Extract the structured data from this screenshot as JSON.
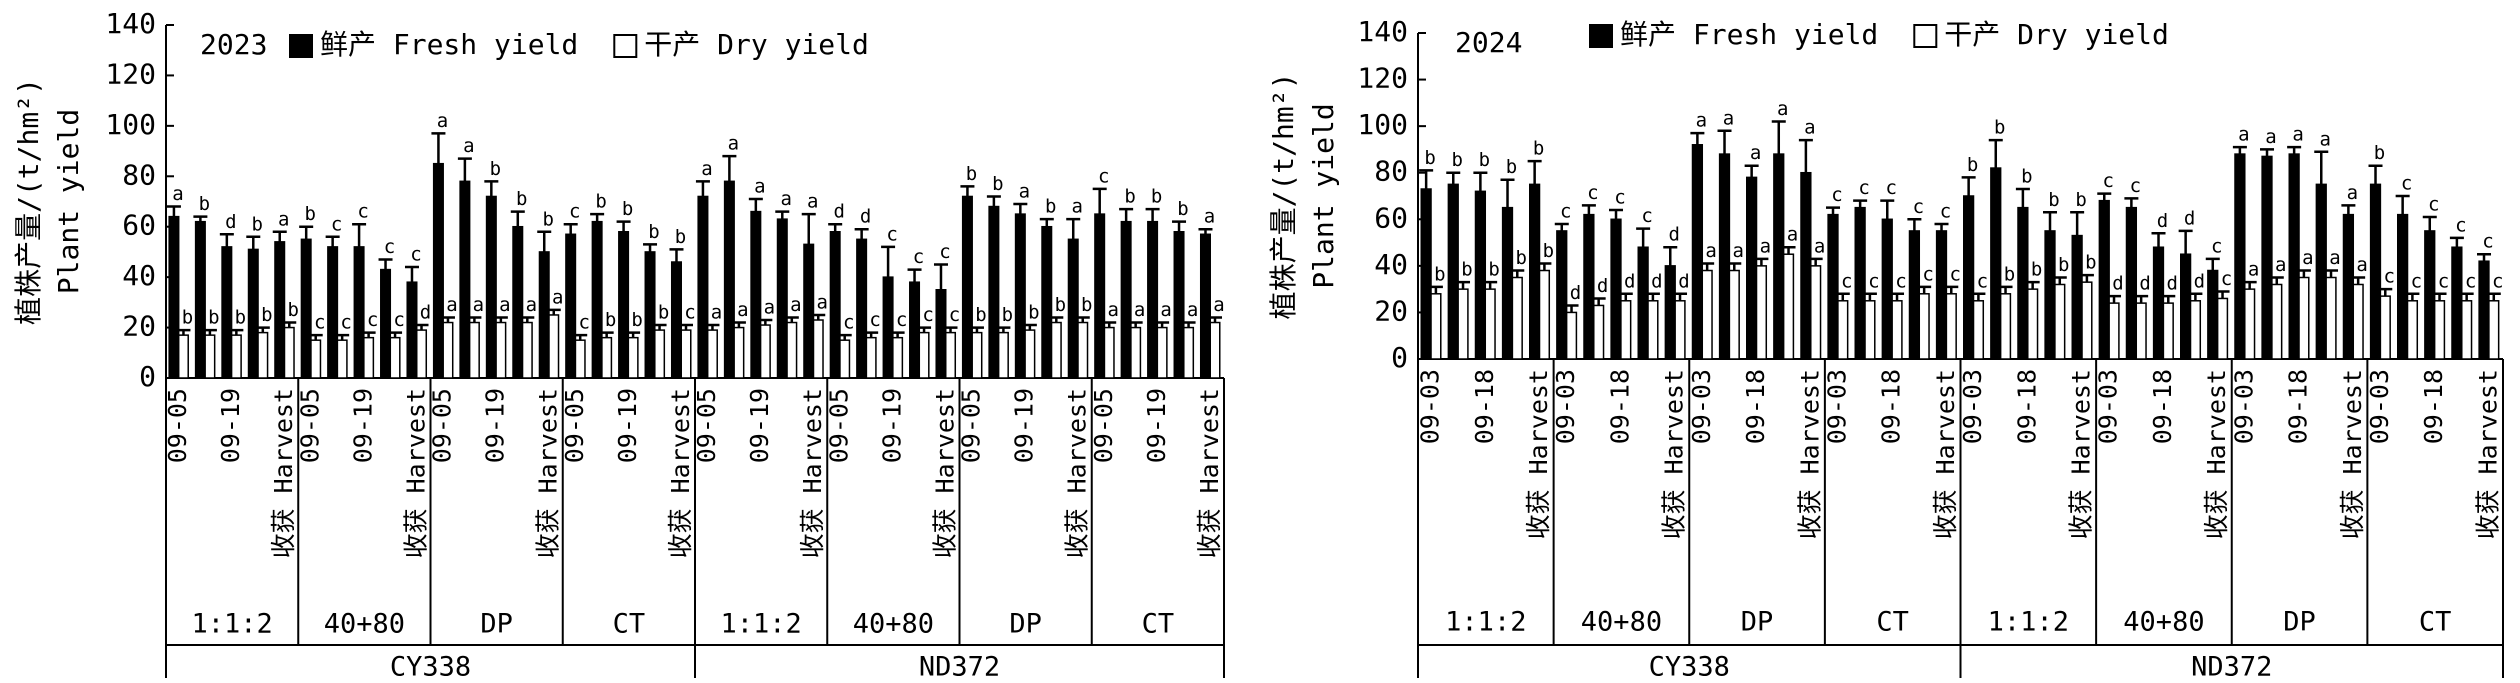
{
  "chart_data": [
    {
      "type": "bar",
      "title": "2023",
      "ylabel": "植株产量/(t/hm²)",
      "ylabel_en": "Plant yield",
      "ylim": [
        0,
        140
      ],
      "yticks": [
        0,
        20,
        40,
        60,
        80,
        100,
        120,
        140
      ],
      "legend": "top",
      "categories": [
        "09-05",
        null,
        "09-19",
        null,
        "收获 Harvest",
        "09-05",
        null,
        "09-19",
        null,
        "收获 Harvest",
        "09-05",
        null,
        "09-19",
        null,
        "收获 Harvest",
        "09-05",
        null,
        "09-19",
        null,
        "收获 Harvest",
        "09-05",
        null,
        "09-19",
        null,
        "收获 Harvest",
        "09-05",
        null,
        "09-19",
        null,
        "收获 Harvest",
        "09-05",
        null,
        "09-19",
        null,
        "收获 Harvest",
        "09-05",
        null,
        "09-19",
        null,
        "收获 Harvest"
      ],
      "treatments": [
        "1:1:2",
        "40+80",
        "DP",
        "CT",
        "1:1:2",
        "40+80",
        "DP",
        "CT"
      ],
      "varieties": [
        "CY338",
        "ND372"
      ],
      "series": [
        {
          "name": "鲜产 Fresh yield",
          "color": "#000000",
          "values": [
            64,
            62,
            52,
            51,
            54,
            55,
            52,
            52,
            43,
            38,
            85,
            78,
            72,
            60,
            50,
            57,
            62,
            58,
            50,
            46,
            72,
            78,
            66,
            63,
            53,
            58,
            55,
            40,
            38,
            35,
            72,
            68,
            65,
            60,
            55,
            65,
            62,
            62,
            58,
            57
          ],
          "errors": [
            4,
            2,
            5,
            5,
            4,
            5,
            4,
            9,
            4,
            6,
            12,
            9,
            6,
            6,
            8,
            4,
            3,
            4,
            3,
            5,
            6,
            10,
            5,
            3,
            12,
            3,
            4,
            12,
            5,
            10,
            4,
            4,
            4,
            3,
            8,
            10,
            5,
            5,
            4,
            2
          ],
          "letters": [
            "a",
            "b",
            "d",
            "b",
            "a",
            "b",
            "c",
            "c",
            "c",
            "c",
            "a",
            "a",
            "b",
            "b",
            "b",
            "c",
            "b",
            "b",
            "b",
            "b",
            "a",
            "a",
            "a",
            "a",
            "a",
            "d",
            "d",
            "c",
            "c",
            "c",
            "b",
            "b",
            "a",
            "b",
            "a",
            "c",
            "b",
            "b",
            "b",
            "a"
          ]
        },
        {
          "name": "干产 Dry yield",
          "color": "#ffffff",
          "values": [
            17,
            17,
            17,
            18,
            20,
            15,
            15,
            16,
            16,
            19,
            22,
            22,
            22,
            22,
            25,
            15,
            16,
            16,
            19,
            19,
            19,
            20,
            21,
            22,
            23,
            15,
            16,
            16,
            18,
            18,
            18,
            18,
            19,
            22,
            22,
            20,
            20,
            20,
            20,
            22
          ],
          "errors": [
            2,
            2,
            2,
            2,
            2,
            2,
            2,
            2,
            2,
            2,
            2,
            2,
            2,
            2,
            2,
            2,
            2,
            2,
            2,
            2,
            2,
            2,
            2,
            2,
            2,
            2,
            2,
            2,
            2,
            2,
            2,
            2,
            2,
            2,
            2,
            2,
            2,
            2,
            2,
            2
          ],
          "letters": [
            "b",
            "b",
            "b",
            "b",
            "b",
            "c",
            "c",
            "c",
            "c",
            "d",
            "a",
            "a",
            "a",
            "a",
            "a",
            "c",
            "b",
            "b",
            "b",
            "c",
            "a",
            "a",
            "a",
            "a",
            "a",
            "c",
            "c",
            "c",
            "c",
            "c",
            "b",
            "b",
            "b",
            "b",
            "b",
            "a",
            "a",
            "a",
            "a",
            "a"
          ]
        }
      ]
    },
    {
      "type": "bar",
      "title": "2024",
      "ylabel": "植株产量/(t/hm²)",
      "ylabel_en": "Plant yield",
      "ylim": [
        0,
        140
      ],
      "yticks": [
        0,
        20,
        40,
        60,
        80,
        100,
        120,
        140
      ],
      "legend": "top",
      "categories": [
        "09-03",
        null,
        "09-18",
        null,
        "收获 Harvest",
        "09-03",
        null,
        "09-18",
        null,
        "收获 Harvest",
        "09-03",
        null,
        "09-18",
        null,
        "收获 Harvest",
        "09-03",
        null,
        "09-18",
        null,
        "收获 Harvest",
        "09-03",
        null,
        "09-18",
        null,
        "收获 Harvest",
        "09-03",
        null,
        "09-18",
        null,
        "收获 Harvest",
        "09-03",
        null,
        "09-18",
        null,
        "收获 Harvest",
        "09-03",
        null,
        "09-18",
        null,
        "收获 Harvest"
      ],
      "treatments": [
        "1:1:2",
        "40+80",
        "DP",
        "CT",
        "1:1:2",
        "40+80",
        "DP",
        "CT"
      ],
      "varieties": [
        "CY338",
        "ND372"
      ],
      "series": [
        {
          "name": "鲜产 Fresh yield",
          "color": "#000000",
          "values": [
            73,
            75,
            72,
            65,
            75,
            55,
            62,
            60,
            48,
            40,
            92,
            88,
            78,
            88,
            80,
            62,
            65,
            60,
            55,
            55,
            70,
            82,
            65,
            55,
            53,
            68,
            65,
            48,
            45,
            38,
            88,
            87,
            88,
            75,
            62,
            75,
            62,
            55,
            48,
            42
          ],
          "errors": [
            8,
            5,
            8,
            12,
            10,
            3,
            4,
            4,
            8,
            8,
            5,
            10,
            5,
            14,
            14,
            3,
            3,
            8,
            5,
            3,
            8,
            12,
            8,
            8,
            10,
            3,
            4,
            6,
            10,
            5,
            3,
            3,
            3,
            14,
            4,
            8,
            8,
            6,
            4,
            3
          ],
          "letters": [
            "b",
            "b",
            "b",
            "b",
            "b",
            "c",
            "c",
            "c",
            "c",
            "d",
            "a",
            "a",
            "a",
            "a",
            "a",
            "c",
            "c",
            "c",
            "c",
            "c",
            "b",
            "b",
            "b",
            "b",
            "b",
            "c",
            "c",
            "d",
            "d",
            "c",
            "a",
            "a",
            "a",
            "a",
            "a",
            "b",
            "c",
            "c",
            "c",
            "c"
          ]
        },
        {
          "name": "干产 Dry yield",
          "color": "#ffffff",
          "values": [
            28,
            30,
            30,
            35,
            38,
            20,
            23,
            25,
            25,
            25,
            38,
            38,
            40,
            45,
            40,
            25,
            25,
            25,
            28,
            28,
            25,
            28,
            30,
            32,
            33,
            24,
            24,
            24,
            25,
            26,
            30,
            32,
            35,
            35,
            32,
            27,
            25,
            25,
            25,
            25
          ],
          "errors": [
            3,
            3,
            3,
            3,
            3,
            3,
            3,
            3,
            3,
            3,
            3,
            3,
            3,
            3,
            3,
            3,
            3,
            3,
            3,
            3,
            3,
            3,
            3,
            3,
            3,
            3,
            3,
            3,
            3,
            3,
            3,
            3,
            3,
            3,
            3,
            3,
            3,
            3,
            3,
            3
          ],
          "letters": [
            "b",
            "b",
            "b",
            "b",
            "b",
            "d",
            "d",
            "d",
            "d",
            "d",
            "a",
            "a",
            "a",
            "a",
            "a",
            "c",
            "c",
            "c",
            "c",
            "c",
            "c",
            "b",
            "b",
            "b",
            "b",
            "d",
            "d",
            "d",
            "d",
            "c",
            "a",
            "a",
            "a",
            "a",
            "a",
            "c",
            "c",
            "c",
            "c",
            "c"
          ]
        }
      ]
    }
  ]
}
